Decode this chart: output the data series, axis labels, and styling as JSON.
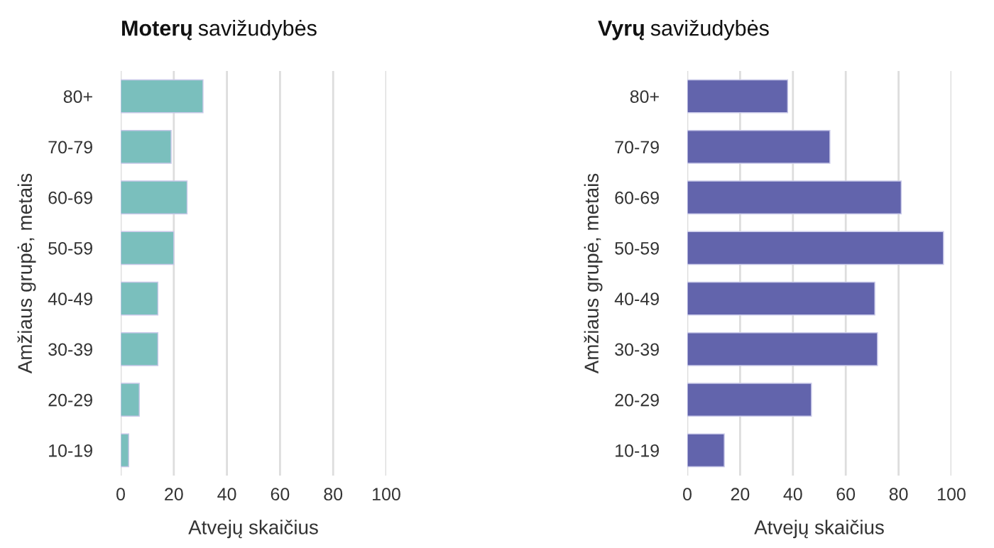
{
  "chart_data": [
    {
      "type": "bar",
      "orientation": "horizontal",
      "title": "Moterų savižudybės",
      "xlabel": "Atvejų skaičius",
      "ylabel": "Amžiaus grupė, metais",
      "categories": [
        "80+",
        "70-79",
        "60-69",
        "50-59",
        "40-49",
        "30-39",
        "20-29",
        "10-19"
      ],
      "series": [
        {
          "color": "#7abfbd",
          "values": [
            31,
            19,
            25,
            20,
            14,
            14,
            7,
            3
          ]
        }
      ],
      "xlim": [
        0,
        100
      ],
      "xticks": [
        0,
        20,
        40,
        60,
        80,
        100
      ],
      "grid": "x",
      "legend": false
    },
    {
      "type": "bar",
      "orientation": "horizontal",
      "title": "Vyrų savižudybės",
      "xlabel": "Atvejų skaičius",
      "ylabel": "Amžiaus grupė, metais",
      "categories": [
        "80+",
        "70-79",
        "60-69",
        "50-59",
        "40-49",
        "30-39",
        "20-29",
        "10-19"
      ],
      "series": [
        {
          "color": "#6264ac",
          "values": [
            38,
            54,
            81,
            97,
            71,
            72,
            47,
            14
          ]
        }
      ],
      "xlim": [
        0,
        100
      ],
      "xticks": [
        0,
        20,
        40,
        60,
        80,
        100
      ],
      "grid": "x",
      "legend": false
    }
  ]
}
